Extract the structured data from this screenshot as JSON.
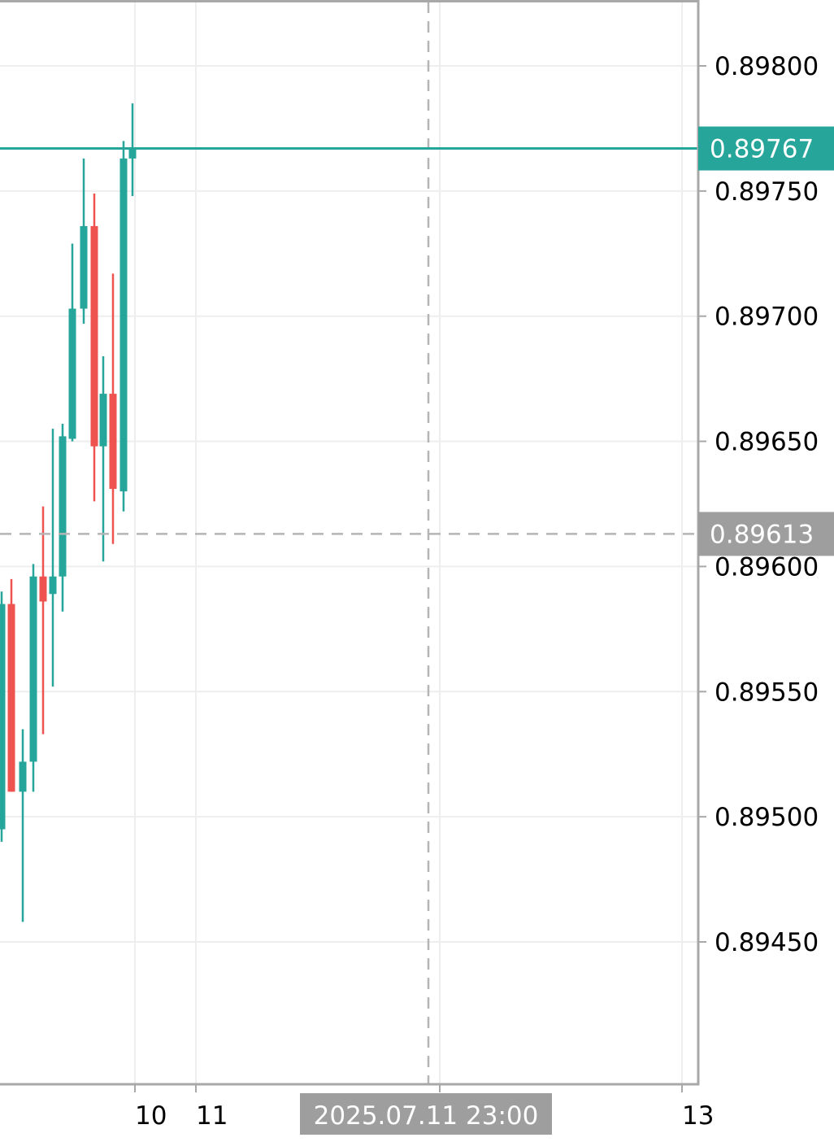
{
  "chart_data": {
    "type": "candlestick",
    "title": "",
    "xlabel": "",
    "ylabel": "",
    "ylim": [
      0.894,
      0.89825
    ],
    "y_ticks": [
      "0.89800",
      "0.89750",
      "0.89700",
      "0.89650",
      "0.89600",
      "0.89550",
      "0.89500",
      "0.89450"
    ],
    "x_ticks": [
      "10",
      "11",
      "13"
    ],
    "grid": true,
    "last_price": {
      "label": "0.89767",
      "value": 0.89767,
      "color": "#26a69a"
    },
    "crosshair": {
      "price_label": "0.89613",
      "price_value": 0.89613,
      "time_label": "2025.07.11 23:00",
      "label_color": "#9e9e9e"
    },
    "colors": {
      "up": "#26a69a",
      "down": "#ef5350",
      "grid": "#eeeeee",
      "axis": "#a8a8a8",
      "crosshair": "#b5b5b5"
    },
    "candles": [
      {
        "open": 0.89495,
        "high": 0.8959,
        "low": 0.8949,
        "close": 0.89585
      },
      {
        "open": 0.89585,
        "high": 0.89595,
        "low": 0.8951,
        "close": 0.8951
      },
      {
        "open": 0.8951,
        "high": 0.89535,
        "low": 0.89458,
        "close": 0.89522
      },
      {
        "open": 0.89522,
        "high": 0.89601,
        "low": 0.8951,
        "close": 0.89596
      },
      {
        "open": 0.89596,
        "high": 0.89624,
        "low": 0.89533,
        "close": 0.89586
      },
      {
        "open": 0.89589,
        "high": 0.89655,
        "low": 0.89552,
        "close": 0.89596
      },
      {
        "open": 0.89596,
        "high": 0.89657,
        "low": 0.89582,
        "close": 0.89652
      },
      {
        "open": 0.89651,
        "high": 0.89729,
        "low": 0.8965,
        "close": 0.89703
      },
      {
        "open": 0.89703,
        "high": 0.89763,
        "low": 0.89697,
        "close": 0.89736
      },
      {
        "open": 0.89736,
        "high": 0.89749,
        "low": 0.89626,
        "close": 0.89648
      },
      {
        "open": 0.89648,
        "high": 0.89684,
        "low": 0.89602,
        "close": 0.89669
      },
      {
        "open": 0.89669,
        "high": 0.89717,
        "low": 0.89609,
        "close": 0.89631
      },
      {
        "open": 0.8963,
        "high": 0.8977,
        "low": 0.89622,
        "close": 0.89763
      },
      {
        "open": 0.89763,
        "high": 0.89785,
        "low": 0.89748,
        "close": 0.89767
      }
    ]
  }
}
